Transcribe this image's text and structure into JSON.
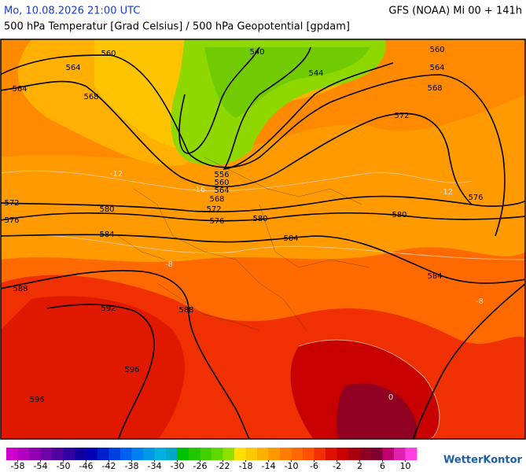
{
  "header": {
    "date": "Mo, 10.08.2026 21:00 UTC",
    "model": "GFS (NOAA) Mi 00 + 141h",
    "subtitle": "500 hPa Temperatur [Grad Celsius] / 500 hPa Geopotential [gpdam]"
  },
  "map": {
    "contour_labels": [
      560,
      564,
      564,
      568,
      540,
      544,
      560,
      564,
      568,
      572,
      556,
      560,
      564,
      568,
      572,
      576,
      580,
      580,
      580,
      572,
      576,
      584,
      584,
      584,
      588,
      588,
      592,
      596,
      596,
      576
    ],
    "temperature_labels": [
      -12,
      -12,
      -16,
      -8,
      -8,
      0
    ]
  },
  "colorbar": {
    "lim": [
      -60,
      12
    ],
    "ticks": [
      -58,
      -54,
      -50,
      -46,
      -42,
      -38,
      -34,
      -30,
      -26,
      -22,
      -18,
      -14,
      -10,
      -6,
      -2,
      2,
      6,
      10
    ],
    "colors": [
      "#d000d0",
      "#b000c0",
      "#9000b0",
      "#7000a8",
      "#5000a0",
      "#3000a0",
      "#1000a0",
      "#0000b4",
      "#0020d0",
      "#0040e0",
      "#0060f0",
      "#0080f0",
      "#0098e8",
      "#00b0e0",
      "#00a8c8",
      "#00c000",
      "#20c800",
      "#40d000",
      "#60d800",
      "#90e000",
      "#ffe000",
      "#ffc800",
      "#ffb000",
      "#ff9800",
      "#ff8000",
      "#ff6800",
      "#ff5000",
      "#f03000",
      "#e01000",
      "#c80000",
      "#a80010",
      "#900020",
      "#800030",
      "#c00070",
      "#e020b0",
      "#ff40e0"
    ]
  },
  "brand": "WetterKontor"
}
